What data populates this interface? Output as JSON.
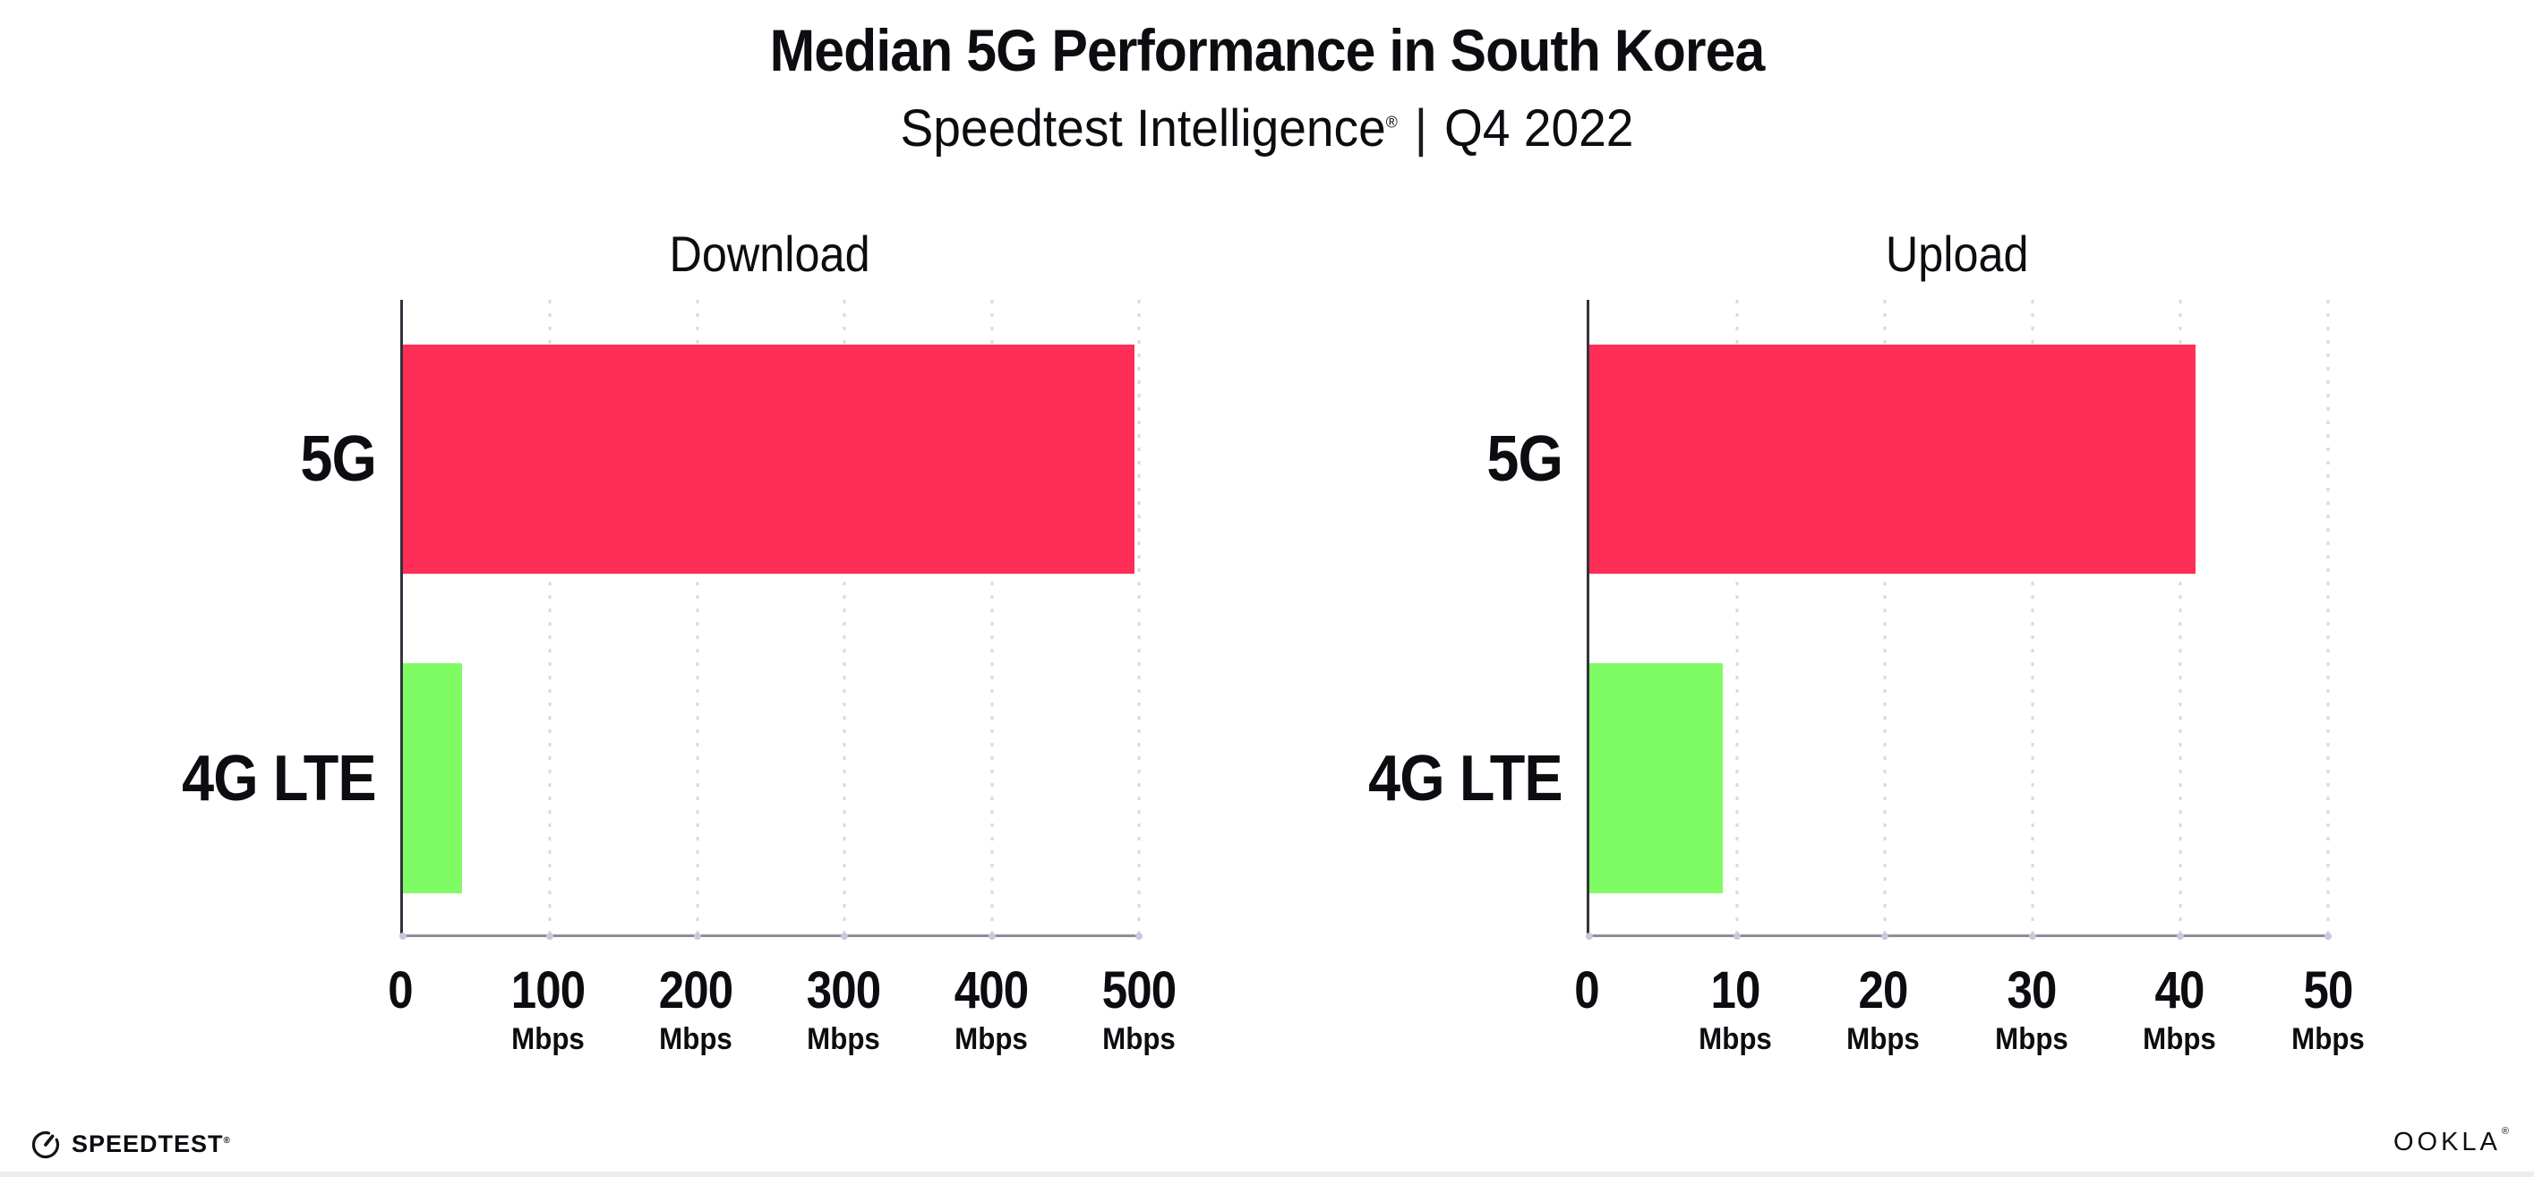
{
  "title": "Median 5G Performance in South Korea",
  "subtitle": {
    "product": "Speedtest Intelligence",
    "registered_mark": "®",
    "separator": "|",
    "period": "Q4 2022"
  },
  "chart_data": [
    {
      "type": "bar",
      "orientation": "horizontal",
      "title": "Download",
      "categories": [
        "5G",
        "4G LTE"
      ],
      "values": [
        497,
        40
      ],
      "value_unit": "Mbps",
      "xlim": [
        0,
        500
      ],
      "xticks": [
        0,
        100,
        200,
        300,
        400,
        500
      ],
      "xtick_units": [
        "",
        "Mbps",
        "Mbps",
        "Mbps",
        "Mbps",
        "Mbps"
      ],
      "bar_colors": [
        "#FF2E56",
        "#7FFB63"
      ],
      "grid": "vertical-dotted",
      "legend": "none"
    },
    {
      "type": "bar",
      "orientation": "horizontal",
      "title": "Upload",
      "categories": [
        "5G",
        "4G LTE"
      ],
      "values": [
        41,
        9
      ],
      "value_unit": "Mbps",
      "xlim": [
        0,
        50
      ],
      "xticks": [
        0,
        10,
        20,
        30,
        40,
        50
      ],
      "xtick_units": [
        "",
        "Mbps",
        "Mbps",
        "Mbps",
        "Mbps",
        "Mbps"
      ],
      "bar_colors": [
        "#FF2E56",
        "#7FFB63"
      ],
      "grid": "vertical-dotted",
      "legend": "none"
    }
  ],
  "colors": {
    "bar_5g": "#FF2E56",
    "bar_4g_lte": "#7FFB63",
    "gridline": "#D9D9E4",
    "y_axis": "#33333E",
    "x_axis": "#8D8D96",
    "text": "#0C0C11",
    "background": "#FFFFFF"
  },
  "footer": {
    "speedtest_wordmark": "SPEEDTEST",
    "speedtest_mark": "®",
    "ookla_wordmark": "OOKLA",
    "ookla_mark": "®"
  }
}
